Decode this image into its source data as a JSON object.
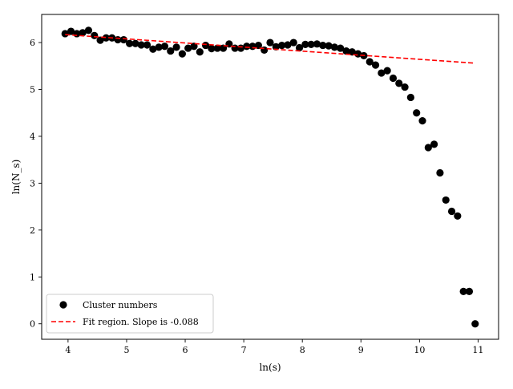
{
  "chart_data": {
    "type": "scatter",
    "xlabel": "ln(s)",
    "ylabel": "ln(N_s)",
    "xlim": [
      3.55,
      11.35
    ],
    "ylim": [
      -0.33,
      6.6
    ],
    "x_ticks": [
      4,
      5,
      6,
      7,
      8,
      9,
      10,
      11
    ],
    "y_ticks": [
      0,
      1,
      2,
      3,
      4,
      5,
      6
    ],
    "grid": false,
    "legend_position": "lower-left",
    "series": [
      {
        "name": "Cluster numbers",
        "kind": "scatter",
        "color": "#000000",
        "points": [
          [
            3.95,
            6.19
          ],
          [
            4.05,
            6.24
          ],
          [
            4.15,
            6.19
          ],
          [
            4.25,
            6.21
          ],
          [
            4.35,
            6.26
          ],
          [
            4.45,
            6.15
          ],
          [
            4.55,
            6.05
          ],
          [
            4.65,
            6.1
          ],
          [
            4.75,
            6.1
          ],
          [
            4.85,
            6.06
          ],
          [
            4.95,
            6.06
          ],
          [
            5.05,
            5.98
          ],
          [
            5.15,
            5.98
          ],
          [
            5.25,
            5.95
          ],
          [
            5.35,
            5.95
          ],
          [
            5.45,
            5.86
          ],
          [
            5.55,
            5.9
          ],
          [
            5.65,
            5.92
          ],
          [
            5.75,
            5.82
          ],
          [
            5.85,
            5.9
          ],
          [
            5.95,
            5.76
          ],
          [
            6.05,
            5.88
          ],
          [
            6.15,
            5.92
          ],
          [
            6.25,
            5.8
          ],
          [
            6.35,
            5.94
          ],
          [
            6.45,
            5.87
          ],
          [
            6.55,
            5.88
          ],
          [
            6.65,
            5.88
          ],
          [
            6.75,
            5.97
          ],
          [
            6.85,
            5.88
          ],
          [
            6.95,
            5.88
          ],
          [
            7.05,
            5.92
          ],
          [
            7.15,
            5.92
          ],
          [
            7.25,
            5.94
          ],
          [
            7.35,
            5.84
          ],
          [
            7.45,
            6.0
          ],
          [
            7.55,
            5.91
          ],
          [
            7.65,
            5.94
          ],
          [
            7.75,
            5.95
          ],
          [
            7.85,
            6.0
          ],
          [
            7.95,
            5.89
          ],
          [
            8.05,
            5.96
          ],
          [
            8.15,
            5.96
          ],
          [
            8.25,
            5.97
          ],
          [
            8.35,
            5.94
          ],
          [
            8.45,
            5.93
          ],
          [
            8.55,
            5.9
          ],
          [
            8.65,
            5.88
          ],
          [
            8.75,
            5.82
          ],
          [
            8.85,
            5.8
          ],
          [
            8.95,
            5.76
          ],
          [
            9.05,
            5.72
          ],
          [
            9.15,
            5.59
          ],
          [
            9.25,
            5.52
          ],
          [
            9.35,
            5.35
          ],
          [
            9.45,
            5.4
          ],
          [
            9.55,
            5.24
          ],
          [
            9.65,
            5.13
          ],
          [
            9.75,
            5.05
          ],
          [
            9.85,
            4.83
          ],
          [
            9.95,
            4.5
          ],
          [
            10.05,
            4.33
          ],
          [
            10.15,
            3.76
          ],
          [
            10.25,
            3.83
          ],
          [
            10.35,
            3.22
          ],
          [
            10.45,
            2.64
          ],
          [
            10.55,
            2.4
          ],
          [
            10.65,
            2.3
          ],
          [
            10.75,
            0.69
          ],
          [
            10.85,
            0.69
          ],
          [
            10.95,
            0.0
          ]
        ]
      },
      {
        "name": "Fit region. Slope is -0.088",
        "kind": "line",
        "style": "dashed",
        "color": "#ff0000",
        "points": [
          [
            3.95,
            6.17
          ],
          [
            10.95,
            5.56
          ]
        ]
      }
    ]
  }
}
